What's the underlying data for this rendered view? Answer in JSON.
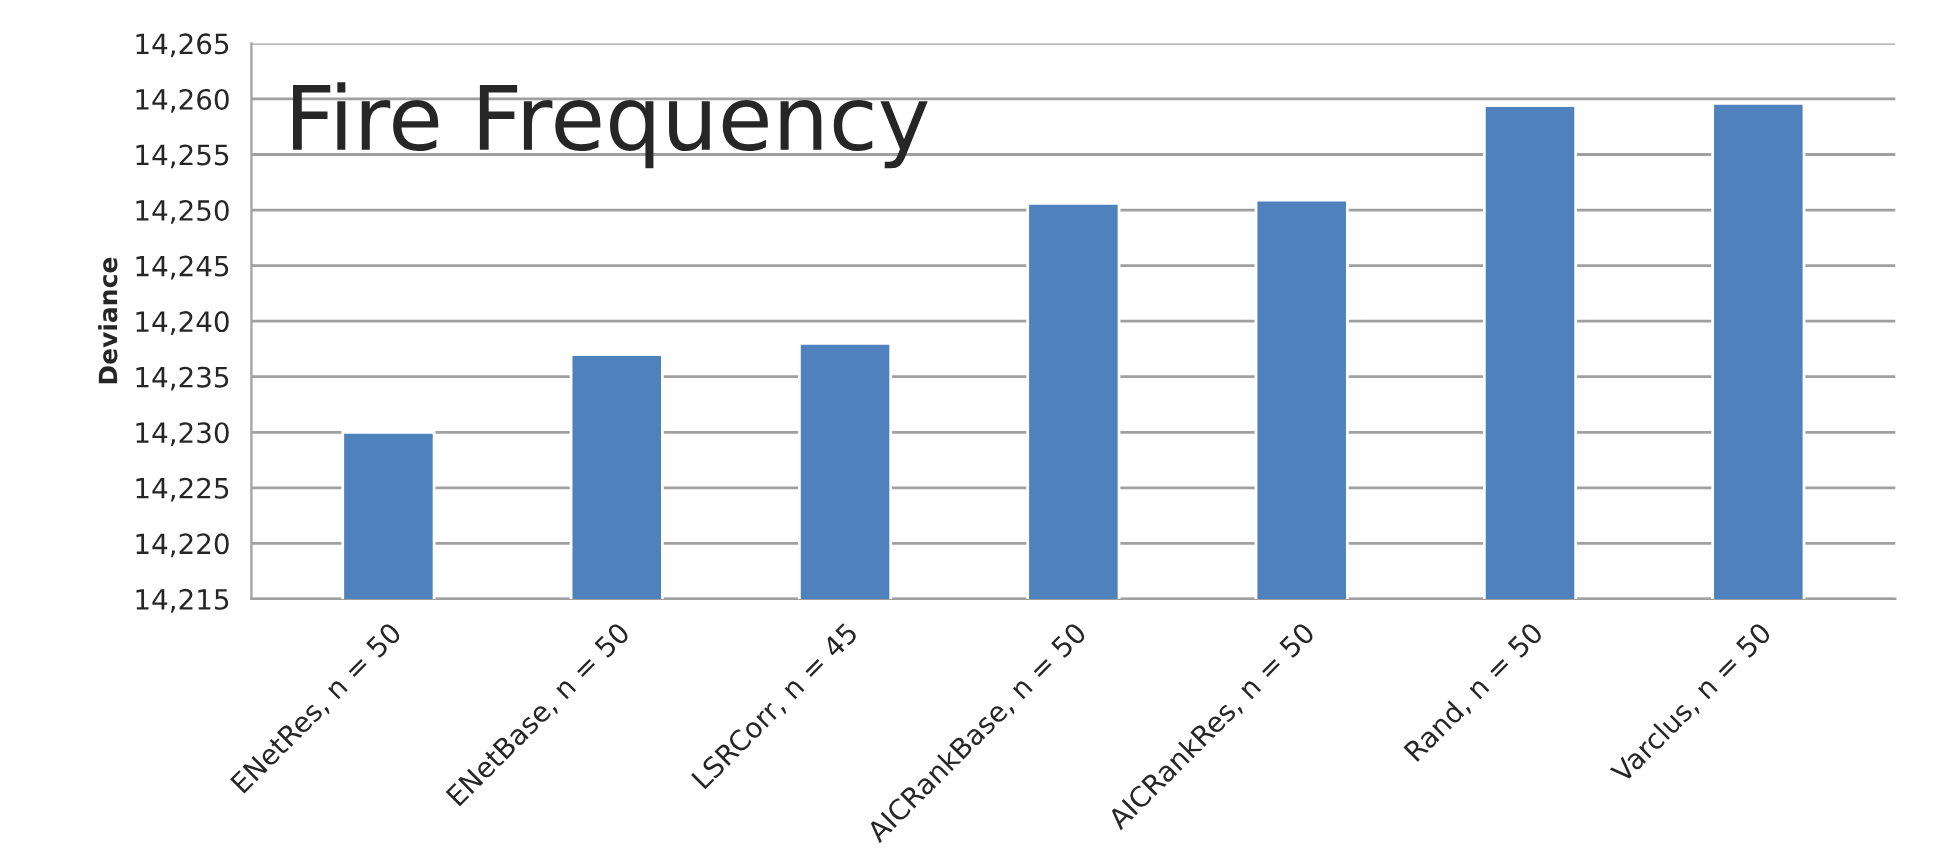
{
  "chart_data": {
    "type": "bar",
    "title": "Fire Frequency",
    "ylabel": "Deviance",
    "categories": [
      "ENetRes, n = 50",
      "ENetBase, n = 50",
      "LSRCorr, n = 45",
      "AICRankBase, n = 50",
      "AICRankRes, n = 50",
      "Rand, n = 50",
      "Varclus, n = 50"
    ],
    "values": [
      14230,
      14237,
      14238,
      14250.6,
      14250.9,
      14259.4,
      14259.6
    ],
    "color": "#4f81bd",
    "ylim": [
      14215,
      14265
    ],
    "yticks": [
      {
        "value": 14215,
        "label": "14,215"
      },
      {
        "value": 14220,
        "label": "14,220"
      },
      {
        "value": 14225,
        "label": "14,225"
      },
      {
        "value": 14230,
        "label": "14,230"
      },
      {
        "value": 14235,
        "label": "14,235"
      },
      {
        "value": 14240,
        "label": "14,240"
      },
      {
        "value": 14245,
        "label": "14,245"
      },
      {
        "value": 14250,
        "label": "14,250"
      },
      {
        "value": 14255,
        "label": "14,255"
      },
      {
        "value": 14260,
        "label": "14,260"
      },
      {
        "value": 14265,
        "label": "14,265"
      }
    ],
    "grid": "y"
  }
}
